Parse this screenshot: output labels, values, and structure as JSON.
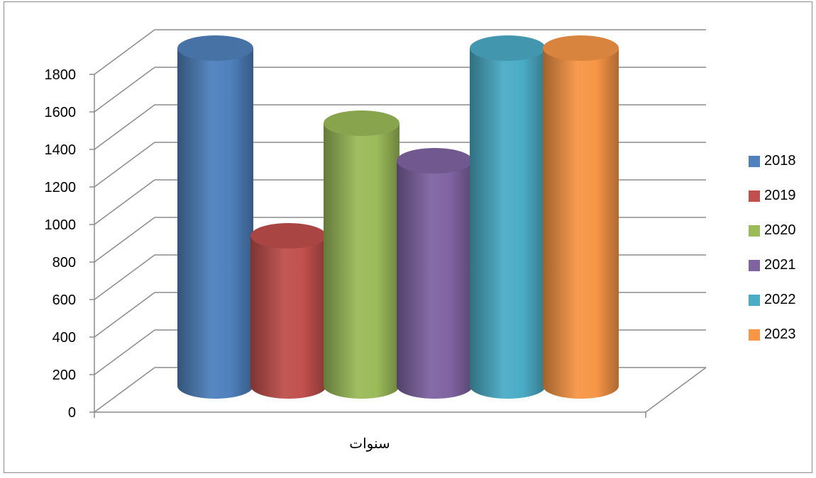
{
  "chart_data": {
    "type": "bar",
    "title": "",
    "xlabel": "سنوات",
    "ylabel": "",
    "ylim": [
      0,
      1800
    ],
    "yticks": [
      "0",
      "200",
      "400",
      "600",
      "800",
      "1000",
      "1200",
      "1400",
      "1600",
      "1800"
    ],
    "grid": true,
    "legend_position": "right",
    "series": [
      {
        "name": "2018",
        "values": [
          1800
        ],
        "color": "#4F81BD"
      },
      {
        "name": "2019",
        "values": [
          800
        ],
        "color": "#C0504D"
      },
      {
        "name": "2020",
        "values": [
          1400
        ],
        "color": "#9BBB59"
      },
      {
        "name": "2021",
        "values": [
          1200
        ],
        "color": "#8064A2"
      },
      {
        "name": "2022",
        "values": [
          1800
        ],
        "color": "#4BACC6"
      },
      {
        "name": "2023",
        "values": [
          1800
        ],
        "color": "#F79646"
      }
    ]
  }
}
